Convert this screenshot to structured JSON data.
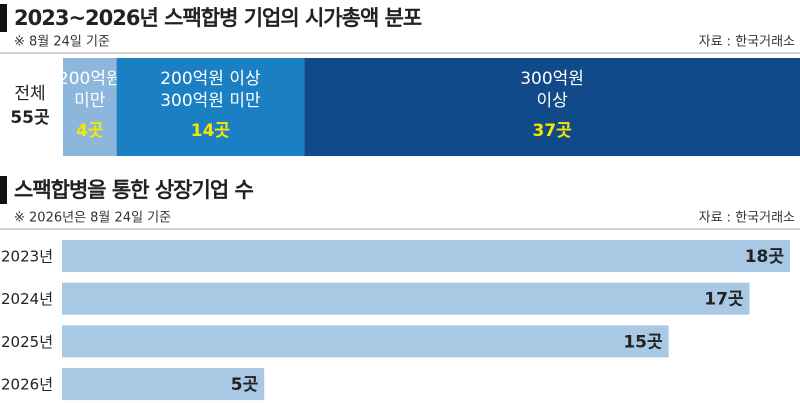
{
  "chart_data": [
    {
      "type": "bar",
      "orientation": "horizontal",
      "stacked": true,
      "title": "2023~2026년 스팩합병 기업의 시가총액 분포",
      "subtitle": "※ 8월 24일 기준",
      "source": "자료 : 한국거래소",
      "category": [
        "전체"
      ],
      "total": 55,
      "total_label": "55곳",
      "xlim": [
        0,
        55
      ],
      "series": [
        {
          "name": [
            "200억원",
            "미만"
          ],
          "color": "#8cb6dc",
          "values": [
            4
          ],
          "value_labels": [
            "4곳"
          ]
        },
        {
          "name": [
            "200억원 이상",
            "300억원 미만"
          ],
          "color": "#1b80c3",
          "values": [
            14
          ],
          "value_labels": [
            "14곳"
          ]
        },
        {
          "name": [
            "300억원",
            "이상"
          ],
          "color": "#114a88",
          "values": [
            37
          ],
          "value_labels": [
            "37곳"
          ]
        }
      ],
      "value_label_color": "#f6e600"
    },
    {
      "type": "bar",
      "orientation": "horizontal",
      "title": "스팩합병을 통한 상장기업 수",
      "subtitle": "※ 2026년은 8월 24일 기준",
      "source": "자료 : 한국거래소",
      "categories": [
        "2023년",
        "2024년",
        "2025년",
        "2026년"
      ],
      "values": [
        18,
        17,
        15,
        5
      ],
      "value_labels": [
        "18곳",
        "17곳",
        "15곳",
        "5곳"
      ],
      "color": "#a8c8e4",
      "xlim": [
        0,
        18
      ]
    }
  ]
}
